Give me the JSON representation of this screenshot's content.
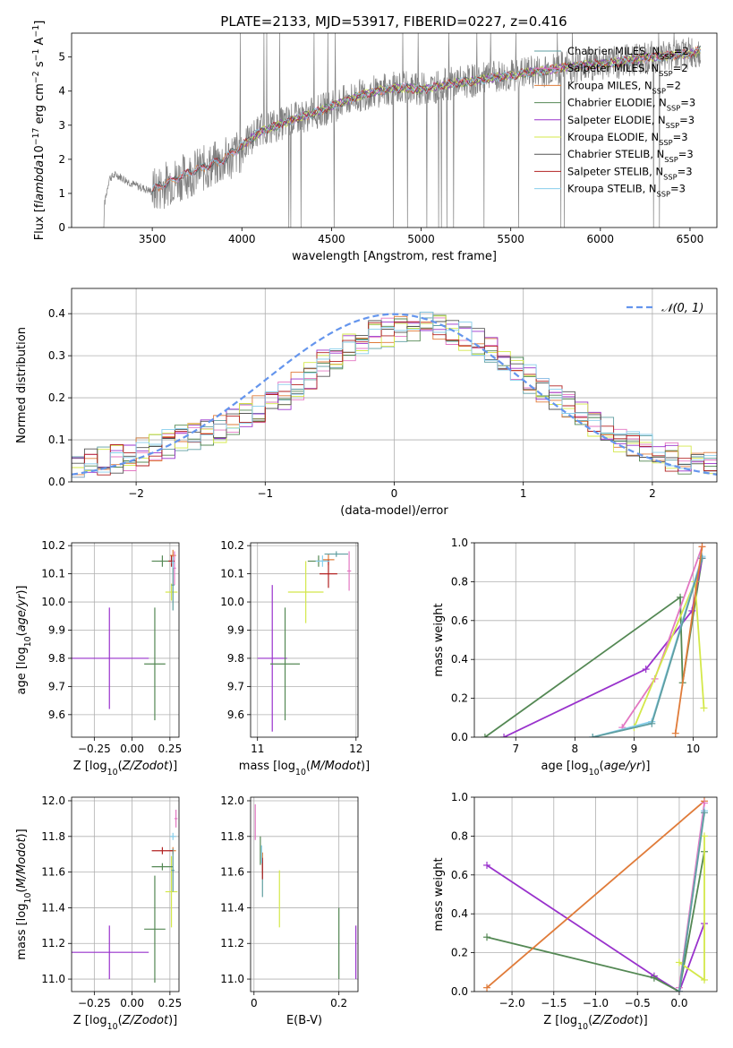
{
  "figure_title": "PLATE=2133, MJD=53917, FIBERID=0227, z=0.416",
  "chart_data": [
    {
      "id": "spectrum",
      "type": "line",
      "xlabel": "wavelength [Angstrom, rest frame]",
      "ylabel": "Flux [f$_\\lambda$10$^{-17}$ erg cm$^{-2}$ s$^{-1}$ A$^{-1}$]",
      "xlim": [
        3050,
        6650
      ],
      "ylim": [
        0,
        5.7
      ],
      "xticks": [
        3500,
        4000,
        4500,
        5000,
        5500,
        6000,
        6500
      ],
      "yticks": [
        0,
        1,
        2,
        3,
        4,
        5
      ],
      "grid": false,
      "legend_position": "top-right",
      "data_curve": {
        "x": [
          3210,
          3260,
          3300,
          3400,
          3500,
          3600,
          3700,
          3800,
          3900,
          4000,
          4100,
          4200,
          4300,
          4400,
          4500,
          4600,
          4700,
          4800,
          4900,
          5000,
          5100,
          5200,
          5300,
          5400,
          5500,
          5600,
          5700,
          5800,
          5900,
          6000,
          6100,
          6200,
          6300,
          6400,
          6500,
          6560
        ],
        "y": [
          0.0,
          1.45,
          1.55,
          1.25,
          1.05,
          1.35,
          1.55,
          1.75,
          1.95,
          2.3,
          2.9,
          3.0,
          3.2,
          3.35,
          3.55,
          3.75,
          3.95,
          4.05,
          4.1,
          4.05,
          4.15,
          4.25,
          4.3,
          4.4,
          4.45,
          4.55,
          4.6,
          4.7,
          4.75,
          4.8,
          4.85,
          4.95,
          5.0,
          5.05,
          5.1,
          5.2
        ]
      },
      "model_curve": {
        "x": [
          3500,
          3600,
          3700,
          3800,
          3900,
          4000,
          4100,
          4200,
          4300,
          4400,
          4500,
          4600,
          4700,
          4800,
          4900,
          5000,
          5100,
          5200,
          5300,
          5400,
          5500,
          5600,
          5700,
          5800,
          5900,
          6000,
          6100,
          6200,
          6300,
          6400,
          6500,
          6560
        ],
        "y": [
          1.1,
          1.35,
          1.6,
          1.8,
          2.0,
          2.4,
          2.8,
          3.0,
          3.2,
          3.35,
          3.55,
          3.75,
          3.95,
          4.05,
          4.1,
          4.05,
          4.15,
          4.25,
          4.3,
          4.4,
          4.45,
          4.55,
          4.6,
          4.7,
          4.75,
          4.8,
          4.85,
          4.95,
          5.0,
          5.05,
          5.1,
          5.2
        ]
      },
      "series": [
        {
          "name": "Chabrier MILES, N$_{SSP}$=2",
          "color": "#5f9ea0",
          "x_start": 3500
        },
        {
          "name": "Salpeter MILES, N$_{SSP}$=2",
          "color": "#e377c2",
          "x_start": 3520
        },
        {
          "name": "Kroupa MILES, N$_{SSP}$=2",
          "color": "#e07b39",
          "x_start": 3520
        },
        {
          "name": "Chabrier ELODIE, N$_{SSP}$=3",
          "color": "#548854",
          "x_start": 4000
        },
        {
          "name": "Salpeter ELODIE, N$_{SSP}$=3",
          "color": "#9932cc",
          "x_start": 4000
        },
        {
          "name": "Kroupa ELODIE, N$_{SSP}$=3",
          "color": "#d4e84a",
          "x_start": 4000
        },
        {
          "name": "Chabrier STELIB, N$_{SSP}$=3",
          "color": "#555555",
          "x_start": 3500
        },
        {
          "name": "Salpeter STELIB, N$_{SSP}$=3",
          "color": "#b22222",
          "x_start": 3500
        },
        {
          "name": "Kroupa STELIB, N$_{SSP}$=3",
          "color": "#87ceeb",
          "x_start": 3500
        }
      ]
    },
    {
      "id": "residuals",
      "type": "area",
      "xlabel": "(data-model)/error",
      "ylabel": "Normed distribution",
      "xlim": [
        -2.5,
        2.5
      ],
      "ylim": [
        0,
        0.46
      ],
      "xticks": [
        -2,
        -1,
        0,
        1,
        2
      ],
      "yticks": [
        0.0,
        0.1,
        0.2,
        0.3,
        0.4
      ],
      "grid": true,
      "legend_position": "top-right",
      "normal_curve": {
        "name": "$\\mathcal{N}(0,1)$",
        "color": "#6495ed",
        "mean": 0,
        "std": 1
      },
      "bins": {
        "start": -2.5,
        "width": 0.1,
        "count": 50
      },
      "hist_base": [
        0.035,
        0.045,
        0.05,
        0.055,
        0.06,
        0.07,
        0.08,
        0.09,
        0.1,
        0.105,
        0.115,
        0.125,
        0.14,
        0.155,
        0.17,
        0.185,
        0.205,
        0.23,
        0.255,
        0.28,
        0.3,
        0.32,
        0.335,
        0.35,
        0.355,
        0.36,
        0.365,
        0.37,
        0.365,
        0.36,
        0.345,
        0.33,
        0.31,
        0.29,
        0.27,
        0.245,
        0.22,
        0.2,
        0.18,
        0.16,
        0.14,
        0.12,
        0.105,
        0.09,
        0.08,
        0.07,
        0.06,
        0.05,
        0.045,
        0.04
      ]
    },
    {
      "id": "age-vs-z",
      "type": "scatter",
      "xlabel": "Z [log$_{10}$($Z/Z_\\odot$)]",
      "ylabel": "age  [log$_{10}$($age/yr$)]",
      "xlim": [
        -0.4,
        0.31
      ],
      "ylim": [
        9.52,
        10.21
      ],
      "xticks": [
        -0.25,
        0.0,
        0.25
      ],
      "xtick_labels": [
        "−0.25",
        "0.00",
        "0.25"
      ],
      "yticks": [
        9.6,
        9.7,
        9.8,
        9.9,
        10.0,
        10.1,
        10.2
      ],
      "grid": true,
      "points": [
        {
          "x": -0.15,
          "y": 9.8,
          "xerr": 0.26,
          "yerr": 0.18,
          "color": "#9932cc"
        },
        {
          "x": 0.15,
          "y": 9.78,
          "xerr": 0.07,
          "yerr": 0.2,
          "color": "#548854"
        },
        {
          "x": 0.26,
          "y": 10.035,
          "xerr": 0.04,
          "yerr": 0.03,
          "color": "#d4e84a"
        },
        {
          "x": 0.2,
          "y": 10.145,
          "xerr": 0.07,
          "yerr": 0.02,
          "color": "#548854"
        },
        {
          "x": 0.27,
          "y": 10.165,
          "xerr": 0.02,
          "yerr": 0.02,
          "color": "#e07b39"
        },
        {
          "x": 0.28,
          "y": 10.12,
          "xerr": 0.01,
          "yerr": 0.06,
          "color": "#e377c2"
        },
        {
          "x": 0.27,
          "y": 10.06,
          "xerr": 0.01,
          "yerr": 0.09,
          "color": "#5f9ea0"
        },
        {
          "x": 0.26,
          "y": 10.145,
          "xerr": 0.02,
          "yerr": 0.02,
          "color": "#b22222"
        },
        {
          "x": 0.27,
          "y": 10.14,
          "xerr": 0.01,
          "yerr": 0.02,
          "color": "#87ceeb"
        }
      ]
    },
    {
      "id": "age-vs-mass",
      "type": "scatter",
      "xlabel": "mass [log$_{10}$($M/M_\\odot$)]",
      "ylabel": "",
      "xlim": [
        10.93,
        12.02
      ],
      "ylim": [
        9.52,
        10.21
      ],
      "xticks": [
        11,
        12
      ],
      "yticks": [
        9.6,
        9.7,
        9.8,
        9.9,
        10.0,
        10.1,
        10.2
      ],
      "grid": true,
      "points": [
        {
          "x": 11.15,
          "y": 9.8,
          "xerr": 0.15,
          "yerr": 0.26,
          "color": "#9932cc"
        },
        {
          "x": 11.28,
          "y": 9.78,
          "xerr": 0.15,
          "yerr": 0.2,
          "color": "#548854"
        },
        {
          "x": 11.49,
          "y": 10.035,
          "xerr": 0.18,
          "yerr": 0.11,
          "color": "#d4e84a"
        },
        {
          "x": 11.62,
          "y": 10.145,
          "xerr": 0.11,
          "yerr": 0.02,
          "color": "#548854"
        },
        {
          "x": 11.72,
          "y": 10.15,
          "xerr": 0.06,
          "yerr": 0.02,
          "color": "#e07b39"
        },
        {
          "x": 11.93,
          "y": 10.11,
          "xerr": 0.02,
          "yerr": 0.07,
          "color": "#e377c2"
        },
        {
          "x": 11.8,
          "y": 10.17,
          "xerr": 0.12,
          "yerr": 0.01,
          "color": "#5f9ea0"
        },
        {
          "x": 11.72,
          "y": 10.1,
          "xerr": 0.09,
          "yerr": 0.05,
          "color": "#b22222"
        },
        {
          "x": 11.66,
          "y": 10.145,
          "xerr": 0.07,
          "yerr": 0.02,
          "color": "#87ceeb"
        }
      ]
    },
    {
      "id": "weight-vs-age",
      "type": "line",
      "xlabel": "age  [log$_{10}$($age/yr$)]",
      "ylabel": "mass weight",
      "xlim": [
        6.3,
        10.4
      ],
      "ylim": [
        0,
        1.0
      ],
      "xticks": [
        7,
        8,
        9,
        10
      ],
      "yticks": [
        0.0,
        0.2,
        0.4,
        0.6,
        0.8,
        1.0
      ],
      "grid": true,
      "series": [
        {
          "color": "#548854",
          "x": [
            6.48,
            9.78,
            9.82,
            10.15
          ],
          "y": [
            0.0,
            0.72,
            0.28,
            0.92
          ]
        },
        {
          "color": "#9932cc",
          "x": [
            6.8,
            9.2,
            9.98,
            10.15
          ],
          "y": [
            0.0,
            0.35,
            0.65,
            0.92
          ]
        },
        {
          "color": "#e377c2",
          "x": [
            8.8,
            9.35,
            10.15
          ],
          "y": [
            0.05,
            0.3,
            0.98
          ]
        },
        {
          "color": "#d4e84a",
          "x": [
            9.0,
            10.03,
            10.18
          ],
          "y": [
            0.05,
            0.8,
            0.15
          ]
        },
        {
          "color": "#87ceeb",
          "x": [
            8.3,
            9.3,
            10.15
          ],
          "y": [
            0.0,
            0.08,
            0.93
          ]
        },
        {
          "color": "#5f9ea0",
          "x": [
            8.3,
            9.3,
            10.15
          ],
          "y": [
            0.0,
            0.07,
            0.92
          ]
        },
        {
          "color": "#e07b39",
          "x": [
            9.7,
            10.15
          ],
          "y": [
            0.02,
            0.98
          ]
        }
      ]
    },
    {
      "id": "mass-vs-z",
      "type": "scatter",
      "xlabel": "Z [log$_{10}$($Z/Z_\\odot$)]",
      "ylabel": "mass [log$_{10}$($M/M_\\odot$)]",
      "xlim": [
        -0.4,
        0.31
      ],
      "ylim": [
        10.93,
        12.02
      ],
      "xticks": [
        -0.25,
        0.0,
        0.25
      ],
      "xtick_labels": [
        "−0.25",
        "0.00",
        "0.25"
      ],
      "yticks": [
        11.0,
        11.2,
        11.4,
        11.6,
        11.8,
        12.0
      ],
      "grid": true,
      "points": [
        {
          "x": -0.15,
          "y": 11.15,
          "xerr": 0.26,
          "yerr": 0.15,
          "color": "#9932cc"
        },
        {
          "x": 0.15,
          "y": 11.28,
          "xerr": 0.07,
          "yerr": 0.3,
          "color": "#548854"
        },
        {
          "x": 0.26,
          "y": 11.49,
          "xerr": 0.04,
          "yerr": 0.2,
          "color": "#d4e84a"
        },
        {
          "x": 0.2,
          "y": 11.63,
          "xerr": 0.07,
          "yerr": 0.02,
          "color": "#548854"
        },
        {
          "x": 0.27,
          "y": 11.72,
          "xerr": 0.02,
          "yerr": 0.02,
          "color": "#e07b39"
        },
        {
          "x": 0.29,
          "y": 11.9,
          "xerr": 0.01,
          "yerr": 0.05,
          "color": "#e377c2"
        },
        {
          "x": 0.27,
          "y": 11.61,
          "xerr": 0.01,
          "yerr": 0.12,
          "color": "#5f9ea0"
        },
        {
          "x": 0.2,
          "y": 11.72,
          "xerr": 0.07,
          "yerr": 0.02,
          "color": "#b22222"
        },
        {
          "x": 0.27,
          "y": 11.8,
          "xerr": 0.02,
          "yerr": 0.02,
          "color": "#87ceeb"
        }
      ]
    },
    {
      "id": "mass-vs-ebv",
      "type": "scatter",
      "xlabel": "E(B-V)",
      "ylabel": "",
      "xlim": [
        -0.008,
        0.245
      ],
      "ylim": [
        10.93,
        12.02
      ],
      "xticks": [
        0.0,
        0.2
      ],
      "yticks": [
        11.0,
        11.2,
        11.4,
        11.6,
        11.8,
        12.0
      ],
      "grid": true,
      "points": [
        {
          "x": 0.24,
          "y": 11.15,
          "xerr": 0.0,
          "yerr": 0.15,
          "color": "#9932cc"
        },
        {
          "x": 0.2,
          "y": 11.2,
          "xerr": 0.0,
          "yerr": 0.2,
          "color": "#548854"
        },
        {
          "x": 0.06,
          "y": 11.45,
          "xerr": 0.0,
          "yerr": 0.16,
          "color": "#d4e84a"
        },
        {
          "x": 0.015,
          "y": 11.72,
          "xerr": 0.0,
          "yerr": 0.08,
          "color": "#548854"
        },
        {
          "x": 0.02,
          "y": 11.65,
          "xerr": 0.0,
          "yerr": 0.06,
          "color": "#e07b39"
        },
        {
          "x": 0.003,
          "y": 11.88,
          "xerr": 0.0,
          "yerr": 0.1,
          "color": "#e377c2"
        },
        {
          "x": 0.02,
          "y": 11.56,
          "xerr": 0.0,
          "yerr": 0.1,
          "color": "#5f9ea0"
        },
        {
          "x": 0.02,
          "y": 11.62,
          "xerr": 0.0,
          "yerr": 0.06,
          "color": "#b22222"
        },
        {
          "x": 0.018,
          "y": 11.7,
          "xerr": 0.0,
          "yerr": 0.05,
          "color": "#87ceeb"
        }
      ]
    },
    {
      "id": "weight-vs-z",
      "type": "line",
      "xlabel": "Z [log$_{10}$($Z/Z_\\odot$)]",
      "ylabel": "mass weight",
      "xlim": [
        -2.45,
        0.45
      ],
      "ylim": [
        0,
        1.0
      ],
      "xticks": [
        -2.0,
        -1.5,
        -1.0,
        -0.5,
        0.0
      ],
      "xtick_labels": [
        "−2.0",
        "−1.5",
        "−1.0",
        "−0.5",
        "0.0"
      ],
      "yticks": [
        0.0,
        0.2,
        0.4,
        0.6,
        0.8,
        1.0
      ],
      "grid": true,
      "series": [
        {
          "color": "#9932cc",
          "x": [
            -2.3,
            -0.3,
            0.0,
            0.3
          ],
          "y": [
            0.65,
            0.08,
            0.0,
            0.35
          ]
        },
        {
          "color": "#548854",
          "x": [
            -2.3,
            -0.3,
            0.0,
            0.3
          ],
          "y": [
            0.28,
            0.07,
            0.0,
            0.72
          ]
        },
        {
          "color": "#e07b39",
          "x": [
            -2.3,
            0.3
          ],
          "y": [
            0.02,
            0.98
          ]
        },
        {
          "color": "#e377c2",
          "x": [
            0.0,
            0.3
          ],
          "y": [
            0.02,
            0.97
          ]
        },
        {
          "color": "#d4e84a",
          "x": [
            0.0,
            0.3,
            0.3
          ],
          "y": [
            0.15,
            0.06,
            0.8
          ]
        },
        {
          "color": "#87ceeb",
          "x": [
            0.0,
            0.3
          ],
          "y": [
            0.0,
            0.93
          ]
        },
        {
          "color": "#5f9ea0",
          "x": [
            0.0,
            0.3
          ],
          "y": [
            0.0,
            0.92
          ]
        }
      ]
    }
  ]
}
